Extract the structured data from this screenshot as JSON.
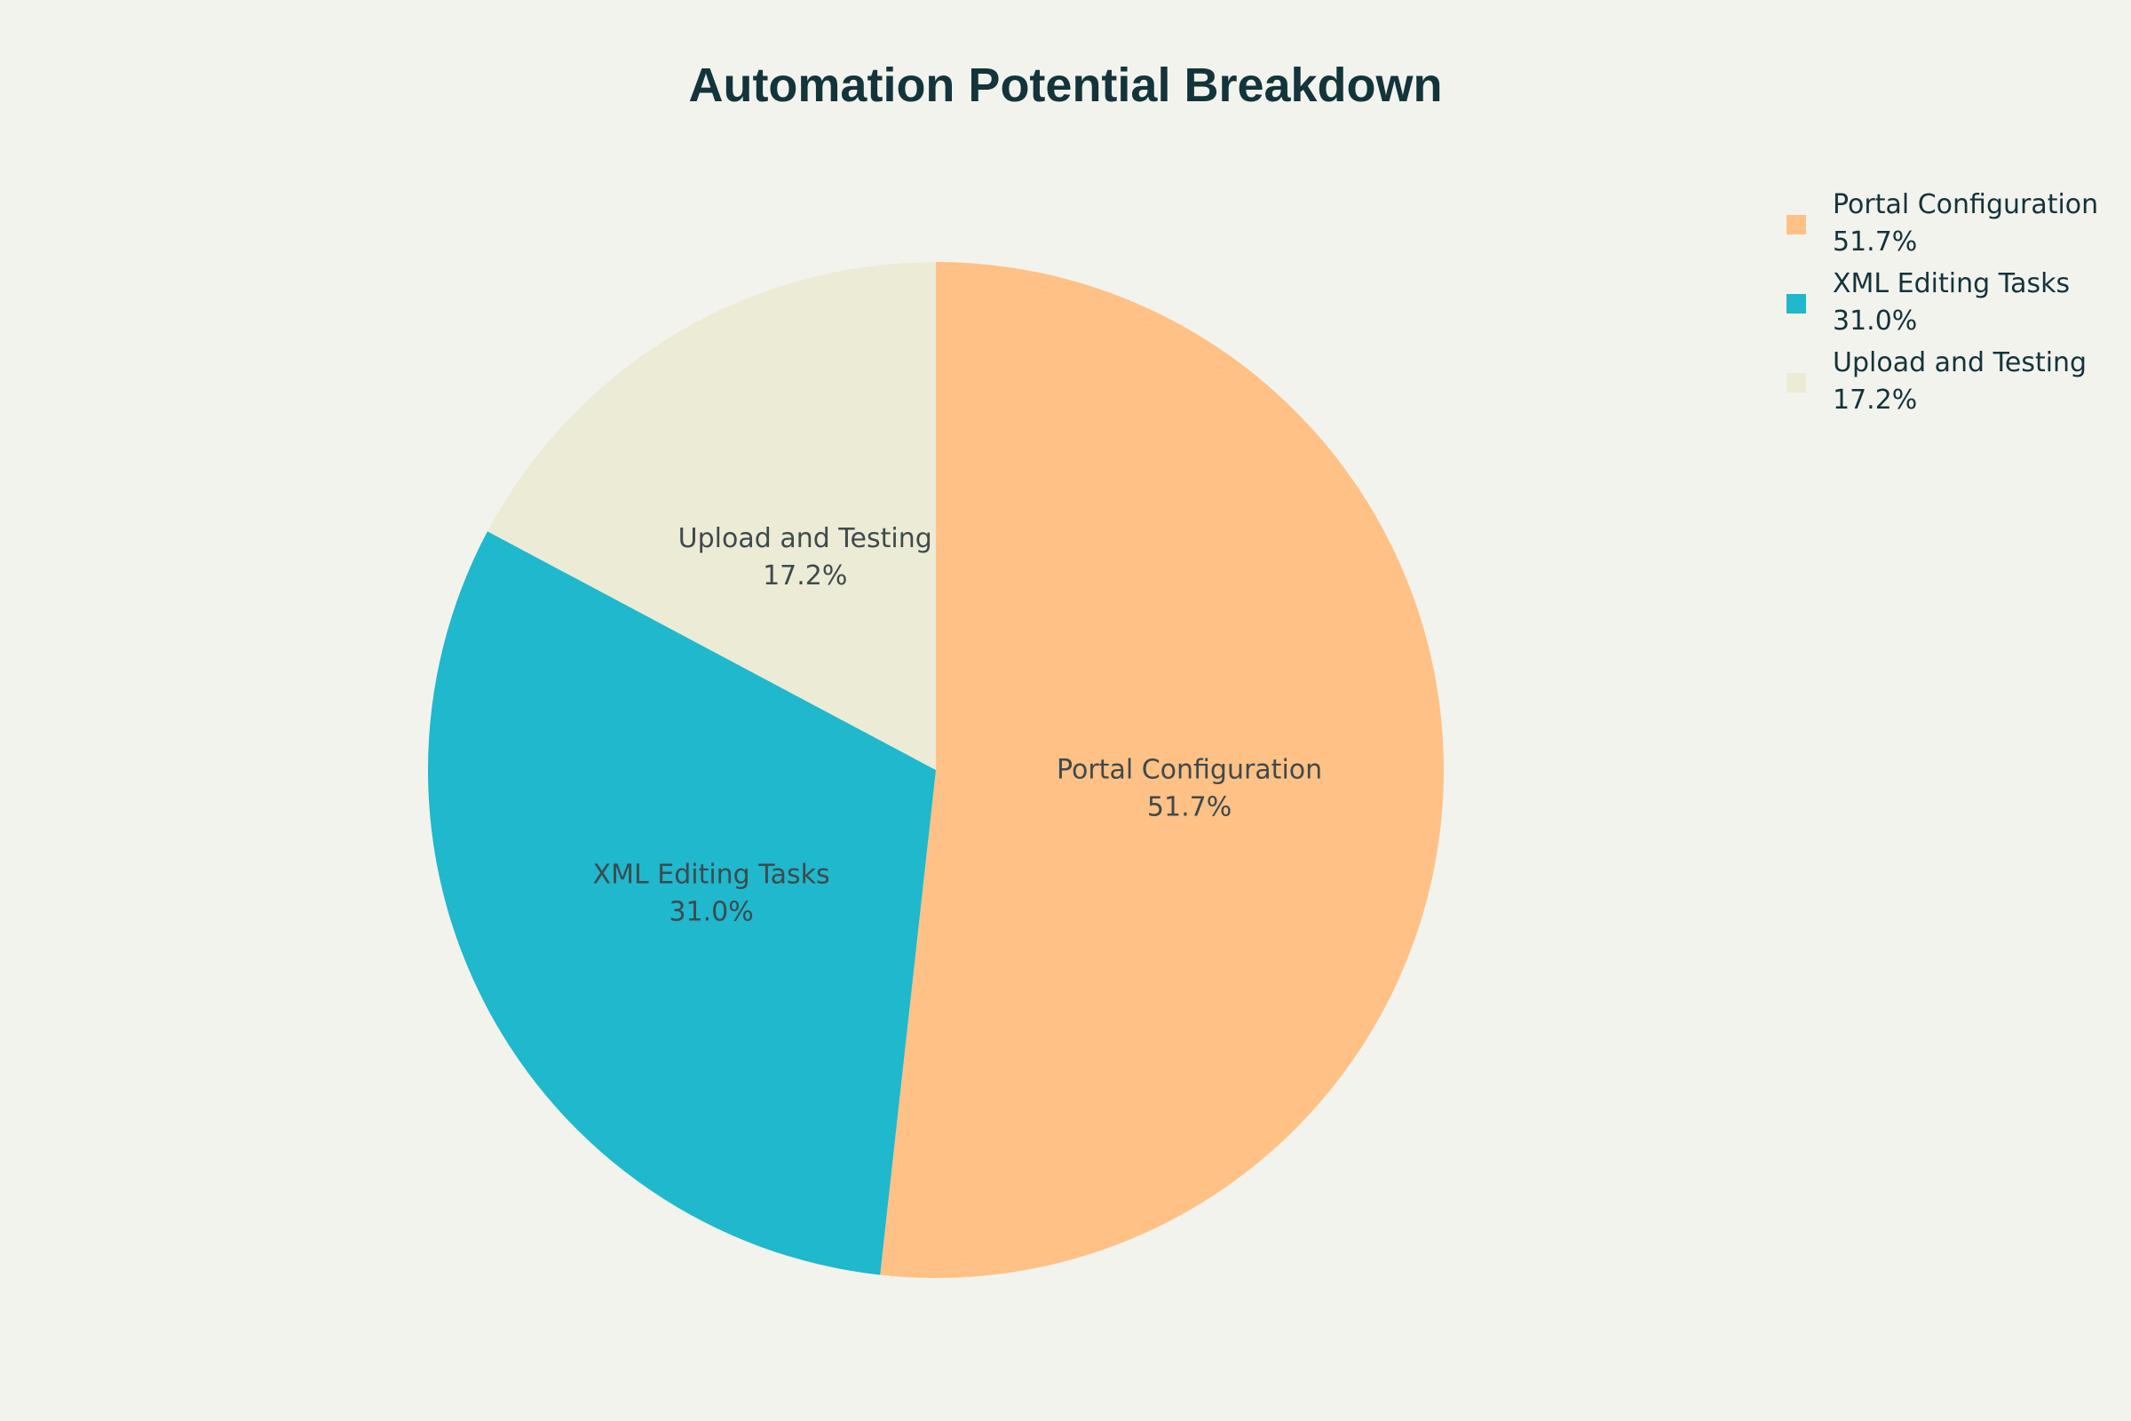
{
  "chart_data": {
    "type": "pie",
    "title": "Automation Potential Breakdown",
    "legend_position": "top-right",
    "start_angle_deg": 90,
    "direction": "clockwise",
    "slices": [
      {
        "label": "Portal Configuration",
        "value": 51.7,
        "percent_text": "51.7%",
        "color": "#ffc185"
      },
      {
        "label": "XML Editing Tasks",
        "value": 31.0,
        "percent_text": "31.0%",
        "color": "#1fb8cd"
      },
      {
        "label": "Upload and Testing",
        "value": 17.2,
        "percent_text": "17.2%",
        "color": "#ecebd5"
      }
    ]
  }
}
